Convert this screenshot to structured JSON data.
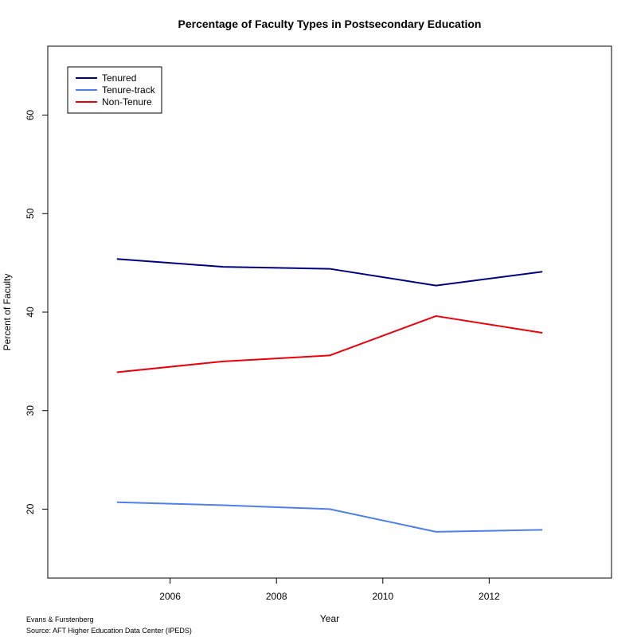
{
  "chart_data": {
    "type": "line",
    "title": "Percentage of Faculty Types in Postsecondary Education",
    "xlabel": "Year",
    "ylabel": "Percent of Faculty",
    "x": [
      2005,
      2007,
      2009,
      2011,
      2013
    ],
    "xlim": [
      2003.7,
      2014.3
    ],
    "ylim": [
      13,
      67
    ],
    "xticks": [
      2006,
      2008,
      2010,
      2012
    ],
    "yticks": [
      20,
      30,
      40,
      50,
      60
    ],
    "grid": false,
    "legend_position": "top-left",
    "series": [
      {
        "name": "Tenured",
        "color": "#00007f",
        "values": [
          45.4,
          44.6,
          44.4,
          42.7,
          44.1
        ]
      },
      {
        "name": "Tenure-track",
        "color": "#4f7fe8",
        "values": [
          20.7,
          20.4,
          20.0,
          17.7,
          17.9
        ]
      },
      {
        "name": "Non-Tenure",
        "color": "#e8000b",
        "values": [
          33.9,
          35.0,
          35.6,
          39.6,
          37.9
        ]
      }
    ],
    "notes": [
      "Evans & Furstenberg",
      "Source: AFT Higher Education Data Center (IPEDS)"
    ]
  }
}
